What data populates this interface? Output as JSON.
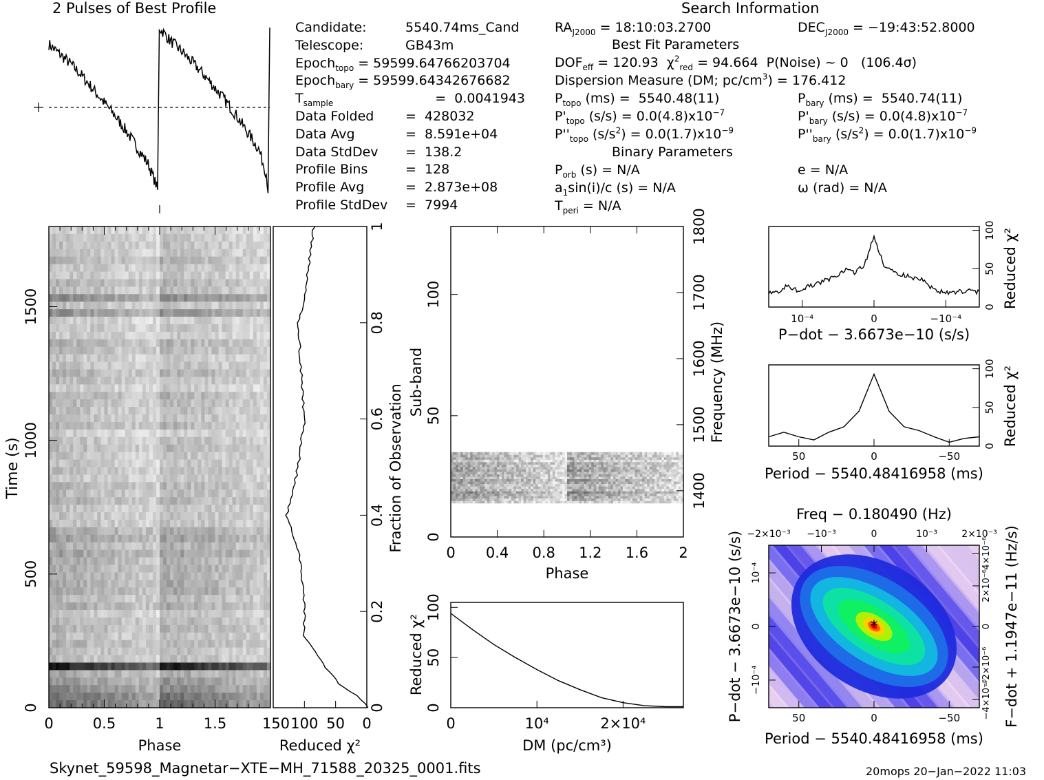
{
  "titles": {
    "profile": "2 Pulses of Best Profile",
    "search": "Search Information",
    "best_fit": "Best Fit Parameters",
    "binary": "Binary Parameters"
  },
  "info_left": [
    {
      "label": "Candidate:",
      "value": "5540.74ms_Cand"
    },
    {
      "label": "Telescope:",
      "value": "GB43m"
    },
    {
      "label": "Epoch",
      "sub": "topo",
      "value": "= 59599.64766203704"
    },
    {
      "label": "Epoch",
      "sub": "bary",
      "value": "= 59599.64342676682"
    },
    {
      "label": "T",
      "sub": "sample",
      "value": "=  0.0041943"
    },
    {
      "label": "Data Folded",
      "value": "=  428032"
    },
    {
      "label": "Data Avg",
      "value": "=  8.591e+04"
    },
    {
      "label": "Data StdDev",
      "value": "=  138.2"
    },
    {
      "label": "Profile Bins",
      "value": "=  128"
    },
    {
      "label": "Profile Avg",
      "value": "=  2.873e+08"
    },
    {
      "label": "Profile StdDev",
      "value": "=  7994"
    }
  ],
  "info_mid": {
    "ra": "RA",
    "ra_sub": "J2000",
    "ra_val": " = 18:10:03.2700",
    "dec": "DEC",
    "dec_sub": "J2000",
    "dec_val": " = −19:43:52.8000",
    "dof": "DOF",
    "dof_sub": "eff",
    "dof_val": " = 120.93",
    "chi": "χ",
    "chi_sup": "2",
    "chi_sub": "red",
    "chi_val": " = 94.664",
    "pnoise": "P(Noise) ~ 0   (106.4σ)",
    "dm": "Dispersion Measure (DM; pc/cm",
    "dm_sup": "3",
    "dm_val": ") = 176.412",
    "ptopo": "P",
    "ptopo_sub": "topo",
    "ptopo_val": " (ms) =  5540.48(11)",
    "pbary": "P",
    "pbary_sub": "bary",
    "pbary_val": " (ms) =  5540.74(11)",
    "pdtopo": "P'",
    "pdtopo_sub": "topo",
    "pdtopo_val": " (s/s) = 0.0(4.8)x10",
    "pdtopo_exp": "−7",
    "pdbary": "P'",
    "pdbary_sub": "bary",
    "pdbary_val": " (s/s) = 0.0(4.8)x10",
    "pdbary_exp": "−7",
    "pddtopo": "P''",
    "pddtopo_sub": "topo",
    "pddtopo_val": " (s/s",
    "pddtopo_sup": "2",
    "pddtopo_val2": ") = 0.0(1.7)x10",
    "pddtopo_exp": "−9",
    "pddbary": "P''",
    "pddbary_sub": "bary",
    "pddbary_val": " (s/s",
    "pddbary_sup": "2",
    "pddbary_val2": ") = 0.0(1.7)x10",
    "pddbary_exp": "−9",
    "porb": "P",
    "porb_sub": "orb",
    "porb_val": " (s) = N/A",
    "e_val": "e = N/A",
    "a1": "a",
    "a1_sub": "1",
    "a1_val": "sin(i)/c (s) = N/A",
    "omega_val": "ω (rad) = N/A",
    "tperi": "T",
    "tperi_sub": "peri",
    "tperi_val": " = N/A"
  },
  "footer": {
    "filename": "Skynet_59598_Magnetar−XTE−MH_71588_20325_0001.fits",
    "stamp": "20mops 20−Jan−2022 11:03"
  },
  "chart_data": [
    {
      "type": "line",
      "name": "profile",
      "title": "2 Pulses of Best Profile",
      "x": [
        0.0,
        0.1,
        0.2,
        0.3,
        0.4,
        0.5,
        0.6,
        0.7,
        0.8,
        0.9,
        0.97,
        0.985,
        1.0,
        1.1,
        1.2,
        1.3,
        1.4,
        1.5,
        1.6,
        1.7,
        1.8,
        1.9,
        1.97,
        1.985,
        2.0
      ],
      "y": [
        0.9,
        0.84,
        0.78,
        0.71,
        0.63,
        0.55,
        0.47,
        0.38,
        0.28,
        0.18,
        0.06,
        0.02,
        1.0,
        0.92,
        0.86,
        0.79,
        0.72,
        0.64,
        0.56,
        0.47,
        0.37,
        0.27,
        0.12,
        0.02,
        1.0
      ]
    },
    {
      "type": "heatmap",
      "name": "time-phase",
      "xlabel": "Phase",
      "ylabel": "Time (s)",
      "xticks": [
        "0",
        "0.5",
        "1",
        "1.5"
      ],
      "yticks": [
        "0",
        "500",
        "1000",
        "1500"
      ],
      "xlim": [
        0,
        2
      ],
      "ylim": [
        0,
        1800
      ]
    },
    {
      "type": "line",
      "name": "time-chi2",
      "xlabel": "Reduced χ²",
      "xticks": [
        "150",
        "100",
        "50",
        "0"
      ],
      "ylabel": "Fraction of Observation",
      "yticks": [
        "0",
        "0.2",
        "0.4",
        "0.6",
        "0.8",
        "1"
      ],
      "y": [
        0.0,
        0.02,
        0.05,
        0.1,
        0.12,
        0.15,
        0.2,
        0.3,
        0.4,
        0.5,
        0.6,
        0.7,
        0.8,
        0.85,
        0.9,
        1.0
      ],
      "x": [
        0,
        10,
        45,
        75,
        85,
        100,
        100,
        105,
        128,
        110,
        100,
        105,
        110,
        100,
        95,
        85
      ],
      "xlim": [
        150,
        0
      ]
    },
    {
      "type": "heatmap",
      "name": "subband-phase",
      "xlabel": "Phase",
      "ylabel": "Sub-band",
      "y2label": "Frequency (MHz)",
      "xticks": [
        "0",
        "0.4",
        "0.8",
        "1.2",
        "1.6",
        "2"
      ],
      "yticks": [
        "0",
        "50",
        "100"
      ],
      "y2ticks": [
        "1400",
        "1500",
        "1600",
        "1700",
        "1800"
      ],
      "xlim": [
        0,
        2
      ],
      "ylim": [
        0,
        128
      ],
      "active_subbands": [
        14,
        35
      ]
    },
    {
      "type": "line",
      "name": "dm-chi2",
      "xlabel": "DM (pc/cm³)",
      "ylabel": "Reduced χ²",
      "xticks": [
        "0",
        "10⁴",
        "2×10⁴"
      ],
      "yticks": [
        "0",
        "50",
        "100"
      ],
      "x": [
        0,
        2500,
        5000,
        7500,
        10000,
        12500,
        15000,
        17500,
        20000,
        22500,
        25000,
        27000
      ],
      "y": [
        94,
        78,
        63,
        50,
        38,
        27,
        18,
        10,
        5,
        2,
        1,
        1
      ],
      "xlim": [
        0,
        27000
      ],
      "ylim": [
        0,
        105
      ]
    },
    {
      "type": "line",
      "name": "pdot-chi2",
      "xlabel": "P−dot − 3.6673e−10 (s/s)",
      "ylabel": "Reduced χ²",
      "xticks": [
        "10⁻⁴",
        "0",
        "−10⁻⁴"
      ],
      "yticks": [
        "0",
        "50",
        "100"
      ],
      "x": [
        -1.0,
        -0.9,
        -0.8,
        -0.7,
        -0.6,
        -0.5,
        -0.4,
        -0.3,
        -0.2,
        -0.1,
        0.0,
        0.1,
        0.2,
        0.3,
        0.4,
        0.5,
        0.6,
        0.7,
        0.8,
        0.9,
        1.0
      ],
      "y": [
        20,
        28,
        22,
        26,
        30,
        35,
        40,
        48,
        45,
        55,
        92,
        55,
        45,
        42,
        38,
        35,
        25,
        20,
        18,
        20,
        22
      ],
      "ylim": [
        0,
        105
      ]
    },
    {
      "type": "line",
      "name": "period-chi2",
      "xlabel": "Period − 5540.48416958 (ms)",
      "ylabel": "Reduced χ²",
      "xticks": [
        "50",
        "0",
        "−50"
      ],
      "yticks": [
        "0",
        "50",
        "100"
      ],
      "x": [
        70,
        60,
        50,
        40,
        30,
        20,
        10,
        0,
        -10,
        -20,
        -30,
        -40,
        -50,
        -60,
        -70
      ],
      "y": [
        12,
        18,
        12,
        8,
        18,
        25,
        45,
        93,
        45,
        25,
        20,
        12,
        5,
        10,
        12
      ],
      "ylim": [
        0,
        105
      ]
    },
    {
      "type": "heatmap",
      "name": "period-pdot",
      "title": "Freq − 0.180490 (Hz)",
      "xlabel": "Period − 5540.48416958 (ms)",
      "ylabel": "P−dot − 3.6673e−10 (s/s)",
      "y2label": "F−dot + 1.1947e−11 (Hz/s)",
      "xticks": [
        "50",
        "0",
        "−50"
      ],
      "x2ticks": [
        "−2×10⁻³",
        "−10⁻³",
        "0",
        "10⁻³",
        "2×10⁻³"
      ],
      "yticks": [
        "10⁻⁴",
        "0",
        "−10⁻⁴"
      ],
      "y2ticks": [
        "−4×10⁻⁶",
        "−2×10⁻⁶",
        "0",
        "2×10⁻⁶",
        "4×10⁻⁶"
      ],
      "peak": [
        0,
        0
      ]
    }
  ]
}
